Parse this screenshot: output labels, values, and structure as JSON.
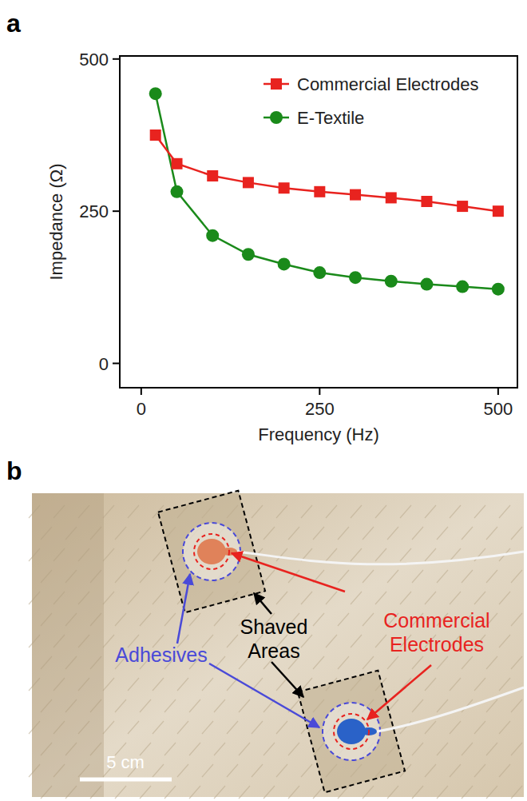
{
  "panel_labels": [
    "a",
    "b"
  ],
  "chart_data": {
    "type": "line",
    "x_label": "Frequency (Hz)",
    "y_label": "Impedance (Ω)",
    "x": [
      20,
      50,
      100,
      150,
      200,
      250,
      300,
      350,
      400,
      450,
      500
    ],
    "series": [
      {
        "name": "Commercial Electrodes",
        "color": "#e8231f",
        "marker": "square",
        "line_style": "solid",
        "values": [
          375,
          328,
          308,
          297,
          288,
          282,
          277,
          272,
          266,
          258,
          250
        ]
      },
      {
        "name": "E-Textile",
        "color": "#1a8a1a",
        "marker": "circle",
        "line_style": "solid",
        "values": [
          443,
          282,
          210,
          179,
          163,
          149,
          141,
          135,
          130,
          126,
          122
        ]
      }
    ],
    "xlim": [
      -30,
      527
    ],
    "ylim": [
      -40,
      505
    ],
    "xticks": [
      0,
      250,
      500
    ],
    "yticks": [
      0,
      250,
      500
    ],
    "grid": false,
    "legend": "upper right"
  },
  "photo": {
    "commercial_electrodes": "Commercial Electrodes",
    "shaved_areas": "Shaved Areas",
    "adhesives": "Adhesives",
    "scale_bar": "5 cm"
  }
}
